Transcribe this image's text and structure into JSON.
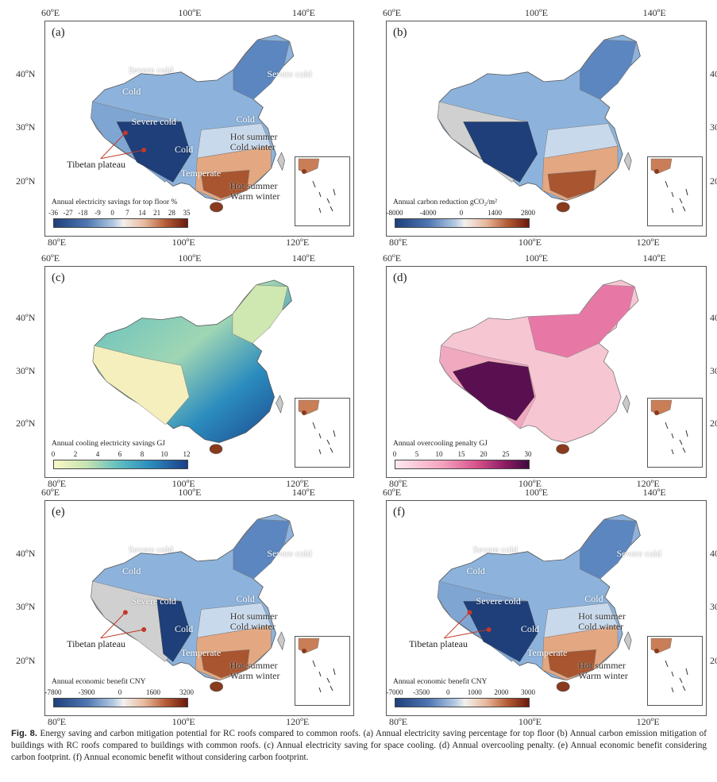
{
  "figure_label": "Fig. 8.",
  "caption": "Energy saving and carbon mitigation potential for RC roofs compared to common roofs. (a) Annual electricity saving percentage for top floor (b) Annual carbon emission mitigation of buildings with RC roofs compared to buildings with common roofs. (c) Annual electricity saving for space cooling. (d) Annual overcooling penalty. (e) Annual economic benefit considering carbon footprint. (f) Annual economic benefit without considering carbon footprint.",
  "axes": {
    "top_lon": [
      "60ºE",
      "100ºE",
      "140ºE"
    ],
    "bottom_lon": [
      "80ºE",
      "100ºE",
      "120ºE"
    ],
    "lat": [
      "40ºN",
      "30ºN",
      "20ºN"
    ]
  },
  "annotation": "Tibetan plateau",
  "regions": {
    "severe_cold": "Severe cold",
    "cold": "Cold",
    "hot_summer_cold_winter_1": "Hot summer",
    "hot_summer_cold_winter_2": "Cold winter",
    "temperate": "Temperate",
    "hot_summer_warm_winter_1": "Hot summer",
    "hot_summer_warm_winter_2": "Warm winter"
  },
  "panels": [
    {
      "letter": "(a)",
      "cb_title": "Annual electricity savings for top floor %",
      "ticks": [
        "-36",
        "-27",
        "-18",
        "-9",
        "0",
        "7",
        "14",
        "21",
        "28",
        "35"
      ],
      "palette": "div"
    },
    {
      "letter": "(b)",
      "cb_title": "Annual carbon reduction gCO₂/m²",
      "ticks": [
        "-8000",
        "-4000",
        "0",
        "1400",
        "2800"
      ],
      "palette": "div"
    },
    {
      "letter": "(c)",
      "cb_title": "Annual cooling electricity savings GJ",
      "ticks": [
        "0",
        "2",
        "4",
        "6",
        "8",
        "10",
        "12"
      ],
      "palette": "ygb"
    },
    {
      "letter": "(d)",
      "cb_title": "Annual overcooling penalty GJ",
      "ticks": [
        "0",
        "5",
        "10",
        "15",
        "20",
        "25",
        "30"
      ],
      "palette": "pink"
    },
    {
      "letter": "(e)",
      "cb_title": "Annual economic benefit CNY",
      "ticks": [
        "-7800",
        "-3900",
        "0",
        "1600",
        "3200"
      ],
      "palette": "div"
    },
    {
      "letter": "(f)",
      "cb_title": "Annual economic benefit CNY",
      "ticks": [
        "-7000",
        "-3500",
        "0",
        "1000",
        "2000",
        "3000"
      ],
      "palette": "div"
    }
  ],
  "colors": {
    "div_low": "#1e3f7a",
    "div_mid": "#f3f1ee",
    "div_high": "#6b1a0e",
    "ygb_low": "#fbf7c6",
    "ygb_high": "#1a3f88",
    "pink_low": "#fde9ee",
    "pink_high": "#3f0a3f",
    "sea_gray": "#d8d8d8"
  }
}
